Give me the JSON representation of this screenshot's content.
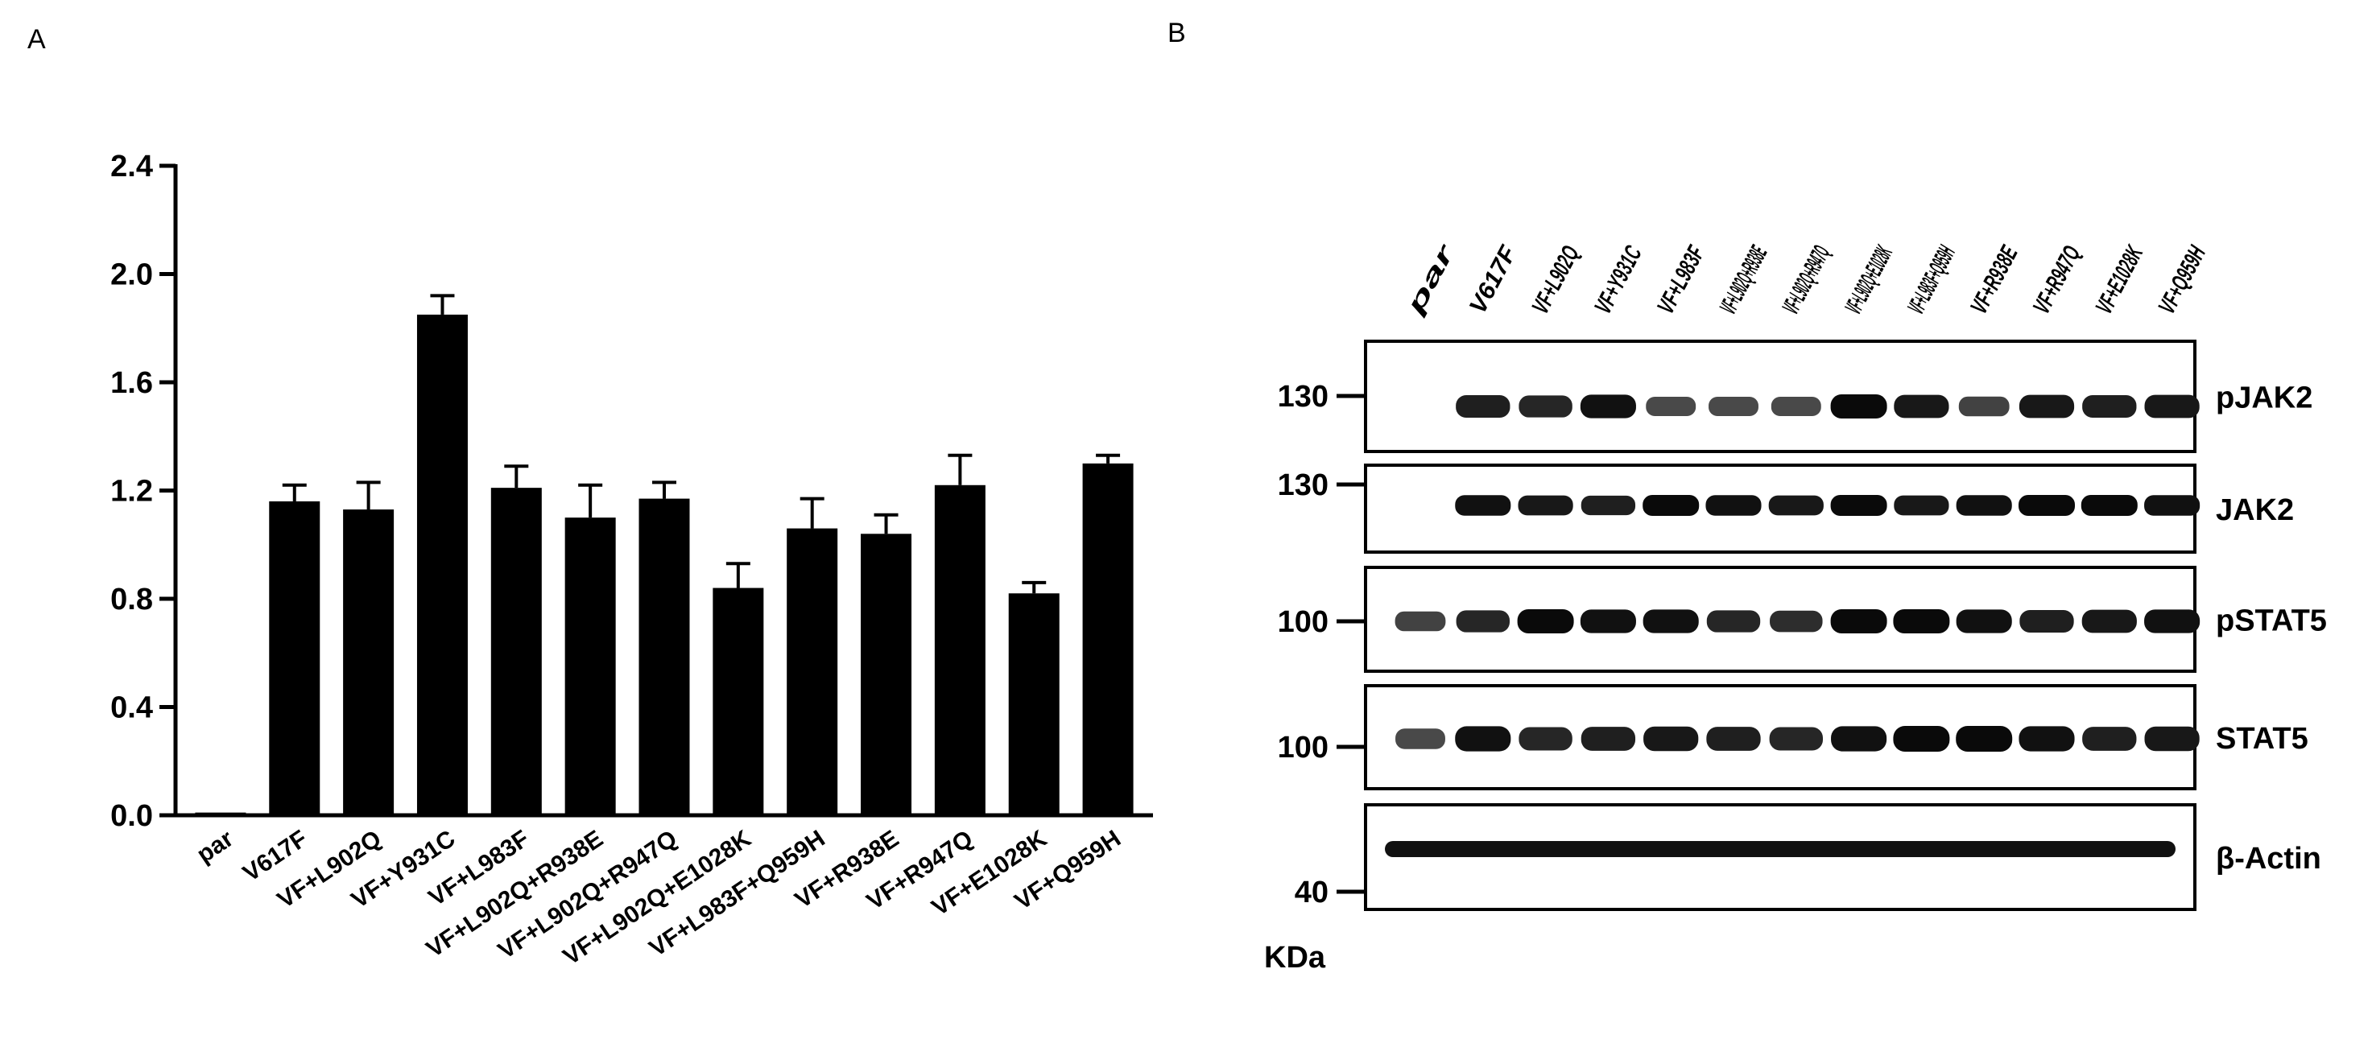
{
  "figure": {
    "panel_a_label": "A",
    "panel_b_label": "B"
  },
  "chart_data": {
    "type": "bar",
    "title": "",
    "xlabel": "",
    "ylabel": "",
    "ylim": [
      0,
      2.4
    ],
    "yticks": [
      "0.0",
      "0.4",
      "0.8",
      "1.2",
      "1.6",
      "2.0",
      "2.4"
    ],
    "grid": false,
    "categories": [
      "par",
      "V617F",
      "VF+L902Q",
      "VF+Y931C",
      "VF+L983F",
      "VF+L902Q+R938E",
      "VF+L902Q+R947Q",
      "VF+L902Q+E1028K",
      "VF+L983F+Q959H",
      "VF+R938E",
      "VF+R947Q",
      "VF+E1028K",
      "VF+Q959H"
    ],
    "values": [
      0.01,
      1.16,
      1.13,
      1.85,
      1.21,
      1.1,
      1.17,
      0.84,
      1.06,
      1.04,
      1.22,
      0.82,
      1.3
    ],
    "errors": [
      0.0,
      0.06,
      0.1,
      0.07,
      0.08,
      0.12,
      0.06,
      0.09,
      0.11,
      0.07,
      0.11,
      0.04,
      0.03
    ],
    "bar_color": "#000000"
  },
  "blot": {
    "lane_labels": [
      "par",
      "V617F",
      "VF+L902Q",
      "VF+Y931C",
      "VF+L983F",
      "VF+L902Q+R938E",
      "VF+L902Q+R947Q",
      "VF+L902Q+E1028K",
      "VF+L983F+Q959H",
      "VF+R938E",
      "VF+R947Q",
      "VF+E1028K",
      "VF+Q959H"
    ],
    "markers": [
      "130",
      "130",
      "100",
      "100",
      "40"
    ],
    "markers_unit": "KDa",
    "proteins": [
      "pJAK2",
      "JAK2",
      "pSTAT5",
      "STAT5",
      "β-Actin"
    ],
    "intensity": {
      "pJAK2": [
        0.0,
        0.85,
        0.8,
        0.95,
        0.55,
        0.55,
        0.55,
        1.0,
        0.9,
        0.6,
        0.9,
        0.85,
        0.9
      ],
      "JAK2": [
        0.0,
        0.95,
        0.9,
        0.85,
        1.0,
        0.95,
        0.9,
        1.0,
        0.9,
        0.95,
        1.0,
        1.0,
        0.95
      ],
      "pSTAT5": [
        0.6,
        0.8,
        1.0,
        0.95,
        0.95,
        0.8,
        0.75,
        1.0,
        1.0,
        0.95,
        0.85,
        0.9,
        0.95
      ],
      "STAT5": [
        0.55,
        0.95,
        0.8,
        0.85,
        0.9,
        0.85,
        0.8,
        0.95,
        1.0,
        1.0,
        0.95,
        0.85,
        0.9
      ],
      "Actin": [
        0.9,
        0.9,
        0.9,
        0.9,
        0.9,
        0.9,
        0.9,
        0.9,
        0.9,
        0.9,
        0.9,
        0.9,
        0.9
      ]
    }
  }
}
